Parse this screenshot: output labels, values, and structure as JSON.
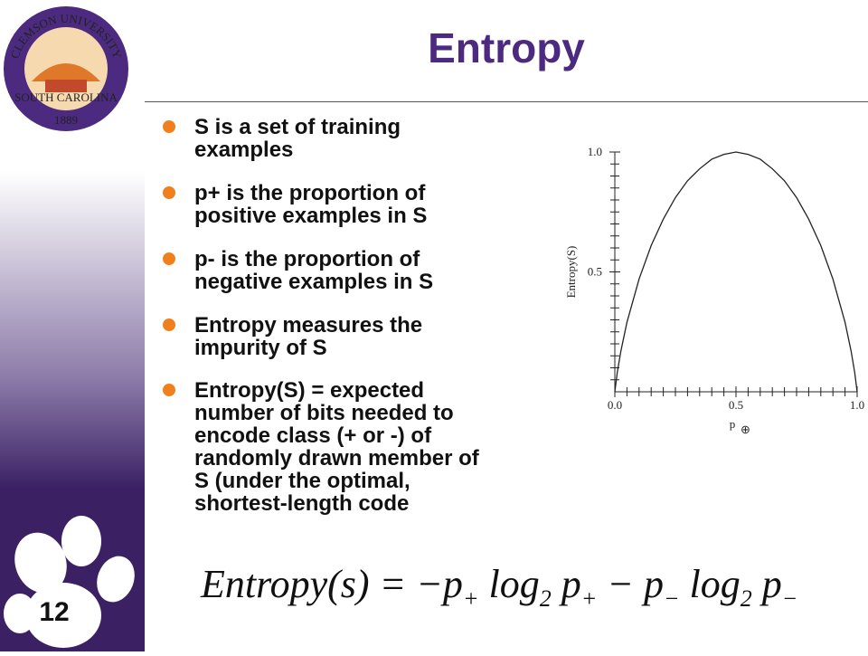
{
  "logo": {
    "top": "CLEMSON UNIVERSITY",
    "state": "SOUTH CAROLINA",
    "year": "1889"
  },
  "slide_number": "12",
  "title": "Entropy",
  "bullets": [
    [
      "S is a set of training",
      "examples"
    ],
    [
      "p+ is the proportion of",
      "positive examples in S"
    ],
    [
      "p- is the proportion of",
      "negative examples in S"
    ],
    [
      "Entropy measures the",
      "impurity of S"
    ],
    [
      "Entropy(S) = expected",
      "number of bits needed to",
      "encode class (+ or -) of",
      "randomly drawn member of",
      "S (under the optimal,",
      "shortest-length code"
    ]
  ],
  "chart_data": {
    "type": "line",
    "ylabel": "Entropy(S)",
    "xlabel": "p",
    "xlabel_sub": "⊕",
    "series": [
      {
        "name": "Entropy",
        "color": "#222222",
        "x": [
          0,
          0.01,
          0.025,
          0.05,
          0.1,
          0.15,
          0.2,
          0.25,
          0.3,
          0.35,
          0.4,
          0.45,
          0.5,
          0.55,
          0.6,
          0.65,
          0.7,
          0.75,
          0.8,
          0.85,
          0.9,
          0.95,
          0.975,
          0.99,
          1
        ],
        "values": [
          0,
          0.08,
          0.17,
          0.29,
          0.47,
          0.61,
          0.72,
          0.81,
          0.88,
          0.93,
          0.97,
          0.99,
          1,
          0.99,
          0.97,
          0.93,
          0.88,
          0.81,
          0.72,
          0.61,
          0.47,
          0.29,
          0.17,
          0.08,
          0
        ]
      }
    ],
    "xlim": [
      0,
      1
    ],
    "ylim": [
      0,
      1
    ],
    "xticks": [
      {
        "value": 0,
        "label": "0.0"
      },
      {
        "value": 0.5,
        "label": "0.5"
      },
      {
        "value": 1,
        "label": "1.0"
      }
    ],
    "yticks": [
      {
        "value": 0.5,
        "label": "0.5"
      },
      {
        "value": 1,
        "label": "1.0"
      }
    ],
    "xminor_ticks": [
      0.05,
      0.1,
      0.15,
      0.2,
      0.25,
      0.3,
      0.35,
      0.4,
      0.45,
      0.55,
      0.6,
      0.65,
      0.7,
      0.75,
      0.8,
      0.85,
      0.9,
      0.95
    ],
    "yminor_ticks": [
      0.05,
      0.1,
      0.15,
      0.2,
      0.25,
      0.3,
      0.35,
      0.4,
      0.45,
      0.55,
      0.6,
      0.65,
      0.7,
      0.75,
      0.8,
      0.85,
      0.9,
      0.95
    ]
  },
  "formula": [
    "Entropy(s) = −p",
    "+",
    " log",
    "2",
    " p",
    "+",
    " − p",
    "−",
    " log",
    "2",
    " p",
    "−"
  ]
}
